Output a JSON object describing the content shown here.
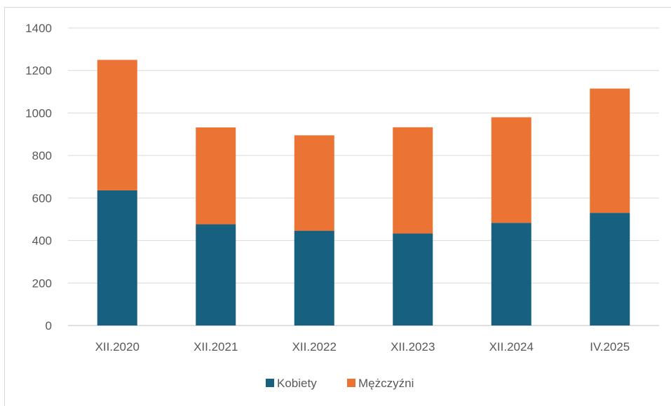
{
  "chart_data": {
    "type": "bar",
    "stacked": true,
    "categories": [
      "XII.2020",
      "XII.2021",
      "XII.2022",
      "XII.2023",
      "XII.2024",
      "IV.2025"
    ],
    "series": [
      {
        "name": "Kobiety",
        "color": "#17607f",
        "values": [
          636,
          476,
          446,
          433,
          483,
          530
        ]
      },
      {
        "name": "Mężczyźni",
        "color": "#eb7434",
        "values": [
          614,
          456,
          449,
          500,
          497,
          585
        ]
      }
    ],
    "ylim": [
      0,
      1400
    ],
    "yticks": [
      "0",
      "200",
      "400",
      "600",
      "800",
      "1000",
      "1200",
      "1400"
    ],
    "grid": true,
    "legend_position": "bottom"
  }
}
